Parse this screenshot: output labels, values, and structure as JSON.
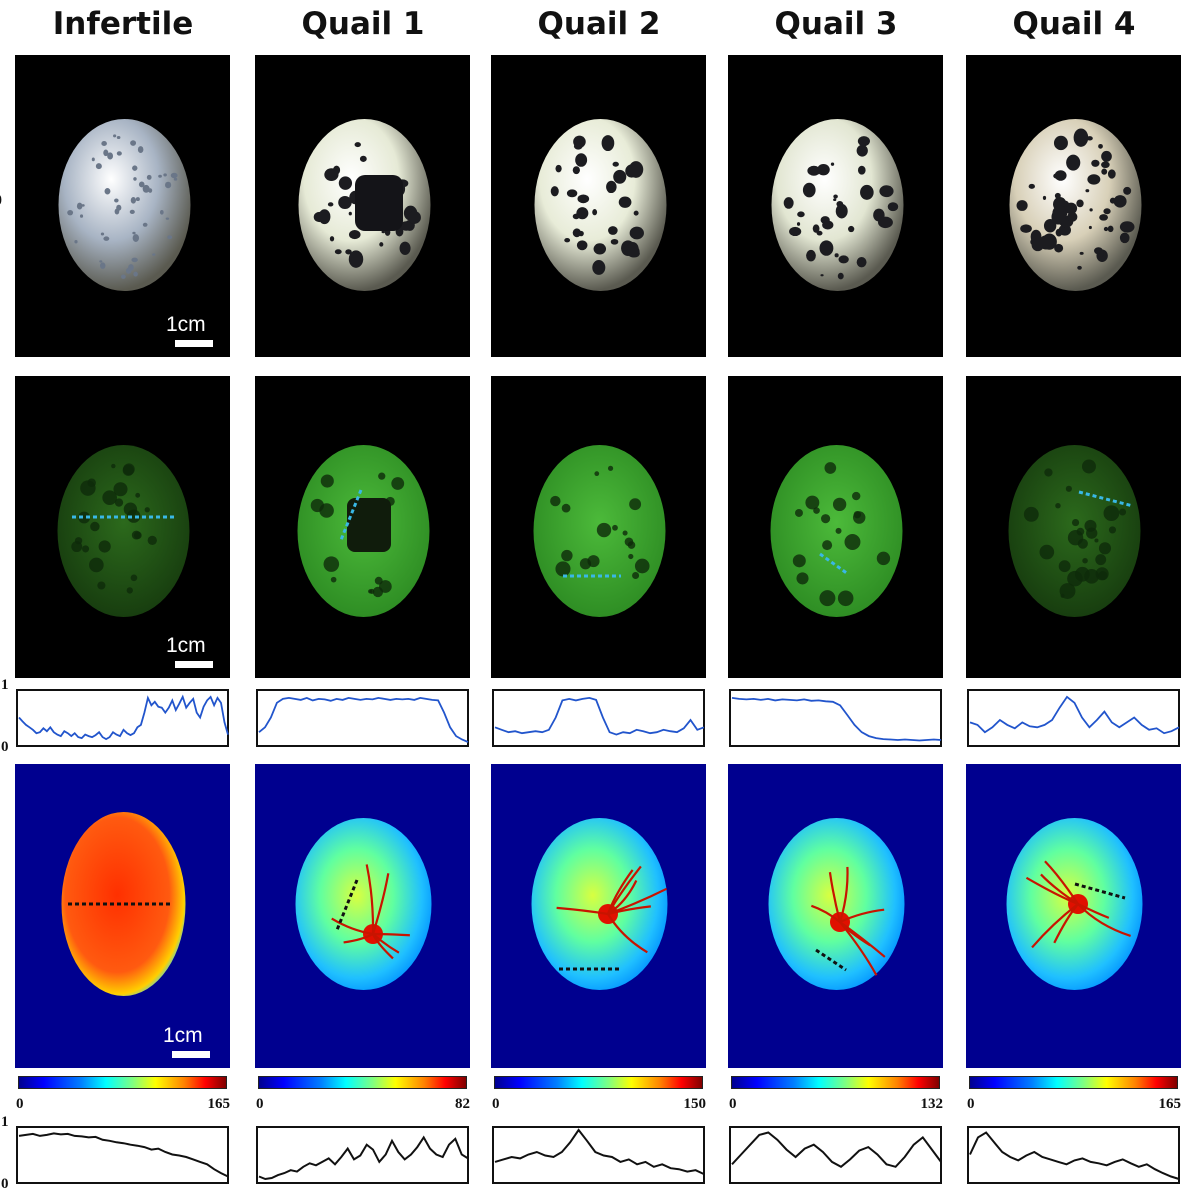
{
  "columns": [
    {
      "title": "Infertile",
      "scale_label": "1cm",
      "cbar_min": "0",
      "cbar_max": "165",
      "shell": "#a8b4c4",
      "spot_density": 0.9,
      "fl_dark": true
    },
    {
      "title": "Quail 1",
      "scale_label": "",
      "cbar_min": "0",
      "cbar_max": "82",
      "shell": "#e6ead6",
      "spot_density": 0.4,
      "fl_dark": false
    },
    {
      "title": "Quail 2",
      "scale_label": "",
      "cbar_min": "0",
      "cbar_max": "150",
      "shell": "#e8ecd8",
      "spot_density": 0.5,
      "fl_dark": false
    },
    {
      "title": "Quail 3",
      "scale_label": "",
      "cbar_min": "0",
      "cbar_max": "132",
      "shell": "#e2e6d2",
      "spot_density": 0.5,
      "fl_dark": false
    },
    {
      "title": "Quail 4",
      "scale_label": "",
      "cbar_min": "0",
      "cbar_max": "165",
      "shell": "#d8d0b8",
      "spot_density": 1.0,
      "fl_dark": true
    }
  ],
  "first_row_scale": {
    "photo": "1cm",
    "fluor": "1cm",
    "heat": "1cm"
  },
  "profile_axis": {
    "top": "1",
    "bottom": "0"
  },
  "cut_label": "0",
  "colors": {
    "fluor_profile": "#2255cc",
    "heat_profile": "#111111",
    "fluor_line": "#39b8e6",
    "heat_line": "#111111"
  },
  "fluor_profiles": [
    [
      0.5,
      0.42,
      0.35,
      0.3,
      0.25,
      0.18,
      0.2,
      0.28,
      0.22,
      0.3,
      0.2,
      0.15,
      0.12,
      0.22,
      0.18,
      0.12,
      0.18,
      0.1,
      0.08,
      0.15,
      0.12,
      0.1,
      0.14,
      0.2,
      0.1,
      0.06,
      0.1,
      0.2,
      0.15,
      0.12,
      0.25,
      0.18,
      0.14,
      0.18,
      0.3,
      0.35,
      0.6,
      0.9,
      0.75,
      0.82,
      0.72,
      0.7,
      0.6,
      0.7,
      0.85,
      0.65,
      0.78,
      0.92,
      0.7,
      0.8,
      0.88,
      0.6,
      0.5,
      0.72,
      0.85,
      0.92,
      0.75,
      0.9,
      0.8,
      0.4,
      0.15
    ],
    [
      0.2,
      0.3,
      0.5,
      0.8,
      0.88,
      0.9,
      0.88,
      0.86,
      0.9,
      0.85,
      0.88,
      0.87,
      0.84,
      0.88,
      0.86,
      0.9,
      0.88,
      0.86,
      0.88,
      0.87,
      0.9,
      0.88,
      0.86,
      0.88,
      0.87,
      0.88,
      0.86,
      0.9,
      0.88,
      0.86,
      0.85,
      0.6,
      0.3,
      0.12,
      0.05,
      0.0
    ],
    [
      0.3,
      0.25,
      0.2,
      0.22,
      0.18,
      0.2,
      0.22,
      0.2,
      0.25,
      0.5,
      0.85,
      0.88,
      0.85,
      0.88,
      0.9,
      0.86,
      0.5,
      0.2,
      0.15,
      0.2,
      0.18,
      0.25,
      0.22,
      0.18,
      0.2,
      0.25,
      0.22,
      0.2,
      0.28,
      0.45,
      0.25,
      0.3
    ],
    [
      0.9,
      0.88,
      0.87,
      0.88,
      0.86,
      0.88,
      0.85,
      0.87,
      0.86,
      0.85,
      0.87,
      0.84,
      0.85,
      0.83,
      0.82,
      0.75,
      0.55,
      0.35,
      0.2,
      0.12,
      0.08,
      0.06,
      0.05,
      0.04,
      0.05,
      0.04,
      0.03,
      0.04,
      0.05,
      0.04
    ],
    [
      0.4,
      0.35,
      0.2,
      0.3,
      0.45,
      0.35,
      0.28,
      0.4,
      0.32,
      0.3,
      0.35,
      0.45,
      0.7,
      0.92,
      0.8,
      0.5,
      0.3,
      0.45,
      0.62,
      0.4,
      0.3,
      0.4,
      0.5,
      0.35,
      0.25,
      0.28,
      0.18,
      0.22,
      0.3
    ]
  ],
  "heat_profiles": [
    [
      0.88,
      0.9,
      0.92,
      0.88,
      0.9,
      0.93,
      0.91,
      0.92,
      0.88,
      0.87,
      0.85,
      0.86,
      0.8,
      0.78,
      0.75,
      0.73,
      0.7,
      0.68,
      0.65,
      0.6,
      0.62,
      0.55,
      0.5,
      0.48,
      0.45,
      0.4,
      0.35,
      0.3,
      0.2,
      0.12,
      0.05
    ],
    [
      0.05,
      0.0,
      0.02,
      0.08,
      0.12,
      0.18,
      0.15,
      0.25,
      0.32,
      0.28,
      0.35,
      0.42,
      0.3,
      0.45,
      0.62,
      0.4,
      0.48,
      0.7,
      0.6,
      0.35,
      0.5,
      0.78,
      0.55,
      0.4,
      0.5,
      0.65,
      0.85,
      0.62,
      0.5,
      0.45,
      0.7,
      0.82,
      0.5,
      0.42
    ],
    [
      0.35,
      0.4,
      0.45,
      0.42,
      0.5,
      0.55,
      0.48,
      0.45,
      0.55,
      0.75,
      1.0,
      0.78,
      0.55,
      0.48,
      0.45,
      0.35,
      0.4,
      0.3,
      0.35,
      0.25,
      0.3,
      0.22,
      0.2,
      0.15,
      0.18,
      0.1
    ],
    [
      0.3,
      0.5,
      0.7,
      0.9,
      0.95,
      0.8,
      0.6,
      0.45,
      0.62,
      0.7,
      0.55,
      0.35,
      0.25,
      0.4,
      0.58,
      0.65,
      0.5,
      0.3,
      0.25,
      0.45,
      0.7,
      0.85,
      0.6,
      0.35
    ],
    [
      0.5,
      0.85,
      0.95,
      0.75,
      0.55,
      0.45,
      0.38,
      0.48,
      0.55,
      0.45,
      0.4,
      0.35,
      0.3,
      0.38,
      0.42,
      0.35,
      0.32,
      0.28,
      0.35,
      0.4,
      0.32,
      0.25,
      0.3,
      0.2,
      0.12,
      0.05,
      0.0
    ]
  ]
}
